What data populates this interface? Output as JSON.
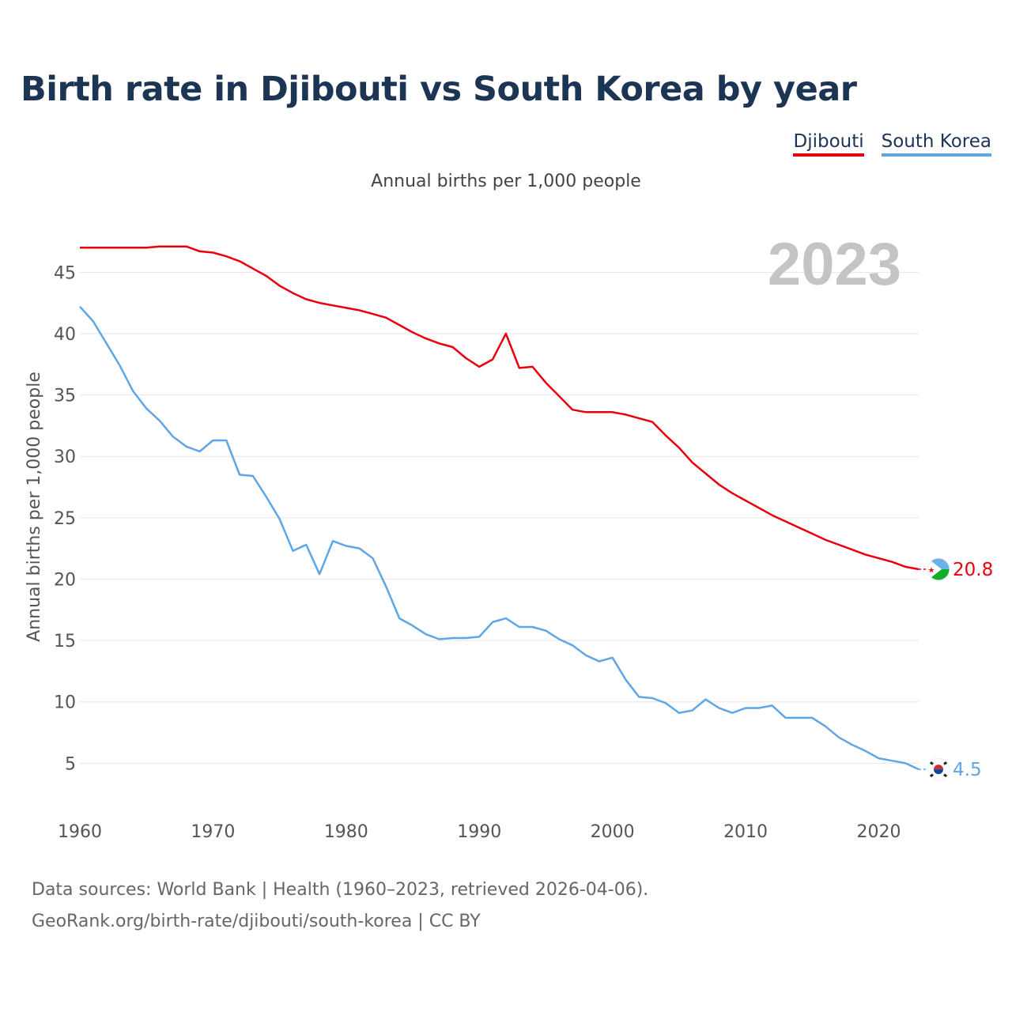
{
  "title": "Birth rate in Djibouti vs South Korea by year",
  "legend": {
    "djibouti": "Djibouti",
    "south_korea": "South Korea"
  },
  "subtitle": "Annual births per 1,000 people",
  "year_label": "2023",
  "footer": {
    "line1": "Data sources: World Bank | Health (1960–2023, retrieved 2026-04-06).",
    "line2": "GeoRank.org/birth-rate/djibouti/south-korea | CC BY"
  },
  "colors": {
    "djibouti": "#e8000d",
    "south_korea": "#5ea6e6",
    "grid": "#e6e6e6",
    "tick": "#555555",
    "year": "#c4c4c4"
  },
  "chart_data": {
    "type": "line",
    "title": "Birth rate in Djibouti vs South Korea by year",
    "ylabel": "Annual births per 1,000 people",
    "xlabel": "",
    "xlim": [
      1960,
      2023
    ],
    "ylim": [
      1.8,
      48.5
    ],
    "xticks": [
      1960,
      1970,
      1980,
      1990,
      2000,
      2010,
      2020
    ],
    "yticks": [
      5,
      10,
      15,
      20,
      25,
      30,
      35,
      40,
      45
    ],
    "legend_position": "top-right",
    "x": [
      1960,
      1961,
      1962,
      1963,
      1964,
      1965,
      1966,
      1967,
      1968,
      1969,
      1970,
      1971,
      1972,
      1973,
      1974,
      1975,
      1976,
      1977,
      1978,
      1979,
      1980,
      1981,
      1982,
      1983,
      1984,
      1985,
      1986,
      1987,
      1988,
      1989,
      1990,
      1991,
      1992,
      1993,
      1994,
      1995,
      1996,
      1997,
      1998,
      1999,
      2000,
      2001,
      2002,
      2003,
      2004,
      2005,
      2006,
      2007,
      2008,
      2009,
      2010,
      2011,
      2012,
      2013,
      2014,
      2015,
      2016,
      2017,
      2018,
      2019,
      2020,
      2021,
      2022,
      2023
    ],
    "series": [
      {
        "name": "Djibouti",
        "values": [
          47.0,
          47.0,
          47.0,
          47.0,
          47.0,
          47.0,
          47.1,
          47.1,
          47.1,
          46.7,
          46.6,
          46.3,
          45.9,
          45.3,
          44.7,
          43.9,
          43.3,
          42.8,
          42.5,
          42.3,
          42.1,
          41.9,
          41.6,
          41.3,
          40.7,
          40.1,
          39.6,
          39.2,
          38.9,
          38.0,
          37.3,
          37.9,
          40.0,
          37.2,
          37.3,
          36.0,
          34.9,
          33.8,
          33.6,
          33.6,
          33.6,
          33.4,
          33.1,
          32.8,
          31.7,
          30.7,
          29.5,
          28.6,
          27.7,
          27.0,
          26.4,
          25.8,
          25.2,
          24.7,
          24.2,
          23.7,
          23.2,
          22.8,
          22.4,
          22.0,
          21.7,
          21.4,
          21.0,
          20.8
        ],
        "end_label": "20.8"
      },
      {
        "name": "South Korea",
        "values": [
          42.2,
          41.0,
          39.2,
          37.4,
          35.3,
          33.9,
          32.9,
          31.6,
          30.8,
          30.4,
          31.3,
          31.3,
          28.5,
          28.4,
          26.7,
          24.9,
          22.3,
          22.8,
          20.4,
          23.1,
          22.7,
          22.5,
          21.7,
          19.4,
          16.8,
          16.2,
          15.5,
          15.1,
          15.2,
          15.2,
          15.3,
          16.5,
          16.8,
          16.1,
          16.1,
          15.8,
          15.1,
          14.6,
          13.8,
          13.3,
          13.6,
          11.8,
          10.4,
          10.3,
          9.9,
          9.1,
          9.3,
          10.2,
          9.5,
          9.1,
          9.5,
          9.5,
          9.7,
          8.7,
          8.7,
          8.7,
          8.0,
          7.1,
          6.5,
          6.0,
          5.4,
          5.2,
          5.0,
          4.5
        ],
        "end_label": "4.5"
      }
    ]
  }
}
